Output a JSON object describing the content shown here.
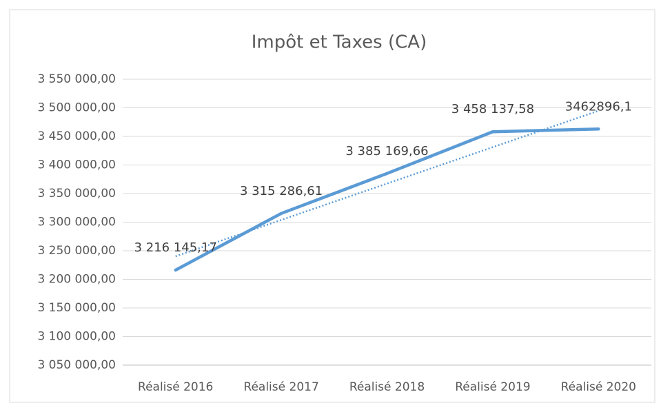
{
  "chart_data": {
    "type": "line",
    "title": "Impôt et Taxes (CA)",
    "categories": [
      "Réalisé 2016",
      "Réalisé 2017",
      "Réalisé 2018",
      "Réalisé 2019",
      "Réalisé 2020"
    ],
    "values": [
      3216145.17,
      3315286.61,
      3385169.66,
      3458137.58,
      3462896.1
    ],
    "value_labels": [
      "3 216 145,17",
      "3 315 286,61",
      "3 385 169,66",
      "3 458 137,58",
      "3462896,1"
    ],
    "color": "#5b9bd5",
    "trendline": "linear",
    "grid": true,
    "ylim": [
      3050000,
      3550000
    ],
    "yticks": [
      {
        "value": 3050000,
        "label": "3 050 000,00"
      },
      {
        "value": 3100000,
        "label": "3 100 000,00"
      },
      {
        "value": 3150000,
        "label": "3 150 000,00"
      },
      {
        "value": 3200000,
        "label": "3 200 000,00"
      },
      {
        "value": 3250000,
        "label": "3 250 000,00"
      },
      {
        "value": 3300000,
        "label": "3 300 000,00"
      },
      {
        "value": 3350000,
        "label": "3 350 000,00"
      },
      {
        "value": 3400000,
        "label": "3 400 000,00"
      },
      {
        "value": 3450000,
        "label": "3 450 000,00"
      },
      {
        "value": 3500000,
        "label": "3 500 000,00"
      },
      {
        "value": 3550000,
        "label": "3 550 000,00"
      }
    ]
  }
}
